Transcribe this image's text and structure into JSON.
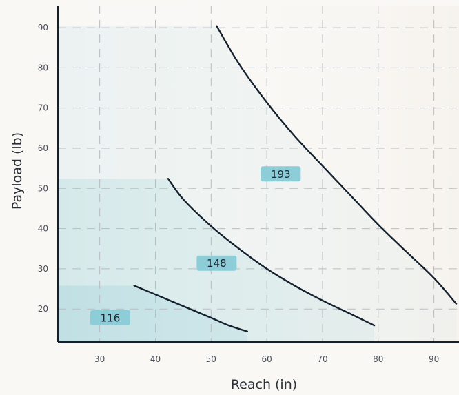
{
  "chart_data": {
    "type": "line",
    "title": "",
    "xlabel": "Reach (in)",
    "ylabel": "Payload (lb)",
    "xlim": [
      22.5,
      94.5
    ],
    "ylim": [
      11.8,
      95.5
    ],
    "xticks": [
      30,
      40,
      50,
      60,
      70,
      80,
      90
    ],
    "yticks": [
      20,
      30,
      40,
      50,
      60,
      70,
      80,
      90
    ],
    "grid": true,
    "line_color": "#14202e",
    "label_bg": "#8ccdd8",
    "series": [
      {
        "name": "193",
        "x": [
          51.0,
          55,
          60,
          65,
          70,
          75,
          80,
          85,
          90,
          94.0
        ],
        "y": [
          90.4,
          81.0,
          71.4,
          63.0,
          55.6,
          48.3,
          41.0,
          34.3,
          27.7,
          21.3
        ],
        "region_top": 90.4,
        "fill": "#e3eeee",
        "label_pos": [
          62.5,
          53.6
        ]
      },
      {
        "name": "148",
        "x": [
          42.3,
          45,
          50,
          55,
          60,
          65,
          70,
          75,
          79.3
        ],
        "y": [
          52.4,
          47.3,
          40.6,
          35.0,
          30.0,
          25.8,
          22.1,
          18.8,
          15.9
        ],
        "region_top": 52.4,
        "fill": "#c8e3e6",
        "label_pos": [
          51.0,
          31.4
        ]
      },
      {
        "name": "116",
        "x": [
          36.2,
          40,
          45,
          50,
          53,
          56.5
        ],
        "y": [
          25.8,
          23.6,
          20.7,
          17.8,
          16.0,
          14.4
        ],
        "region_top": 25.8,
        "fill": "#b2dadf",
        "label_pos": [
          31.9,
          17.8
        ]
      }
    ]
  }
}
